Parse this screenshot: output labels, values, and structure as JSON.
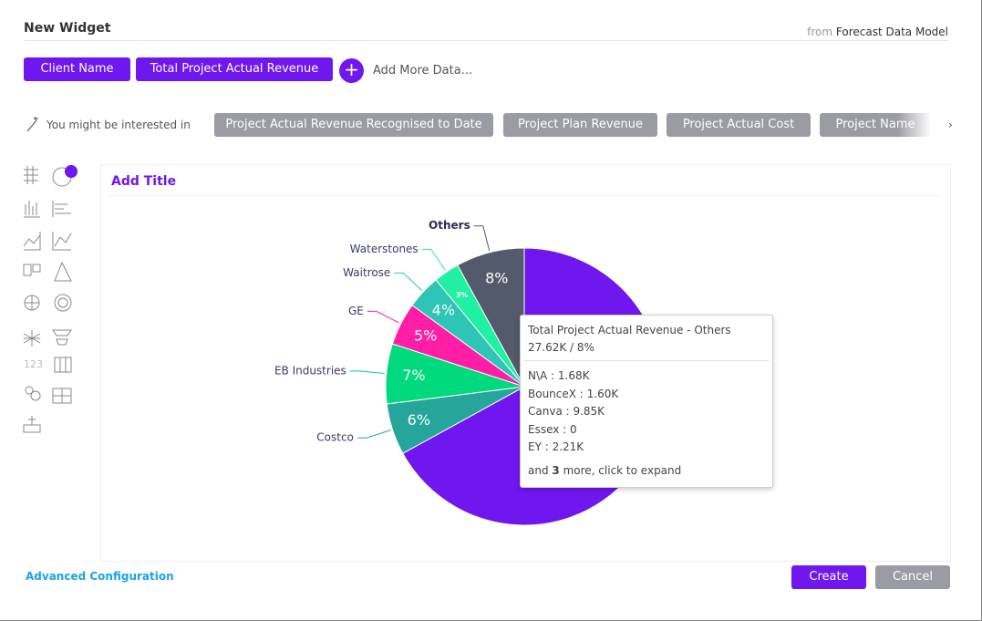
{
  "header": {
    "title": "New Widget",
    "source_prefix": "from",
    "source": "Forecast Data Model"
  },
  "fields": [
    "Client Name",
    "Total Project Actual Revenue"
  ],
  "add_more": "Add More Data...",
  "suggestions": {
    "label": "You might be interested in",
    "items": [
      "Project Actual Revenue Recognised to Date",
      "Project Plan Revenue",
      "Project Actual Cost",
      "Project Name"
    ]
  },
  "sidebar": {
    "number_icon": "123"
  },
  "chart_title": "Add Title",
  "chart_data": {
    "type": "pie",
    "categories": [
      null,
      "Costco",
      "EB Industries",
      "GE",
      "Waitrose",
      "Waterstones",
      "Others"
    ],
    "values": [
      67,
      6,
      7,
      5,
      4,
      3,
      8
    ],
    "value_labels": [
      null,
      "6%",
      "7%",
      "5%",
      "4%",
      "3%",
      "8%"
    ],
    "colors": [
      "#7016ef",
      "#26a69a",
      "#00d97e",
      "#ff1fa6",
      "#2ec4b6",
      "#1ff0a2",
      "#535a6b"
    ]
  },
  "tooltip": {
    "title": "Total Project Actual Revenue  -  Others",
    "summary": "27.62K / 8%",
    "lines": [
      "N\\A : 1.68K",
      "BounceX : 1.60K",
      "Canva : 9.85K",
      "Essex : 0",
      "EY : 2.21K"
    ],
    "more_prefix": "and",
    "more_count": "3",
    "more_suffix": "more, click to expand"
  },
  "footer": {
    "advanced": "Advanced Configuration",
    "create": "Create",
    "cancel": "Cancel"
  }
}
